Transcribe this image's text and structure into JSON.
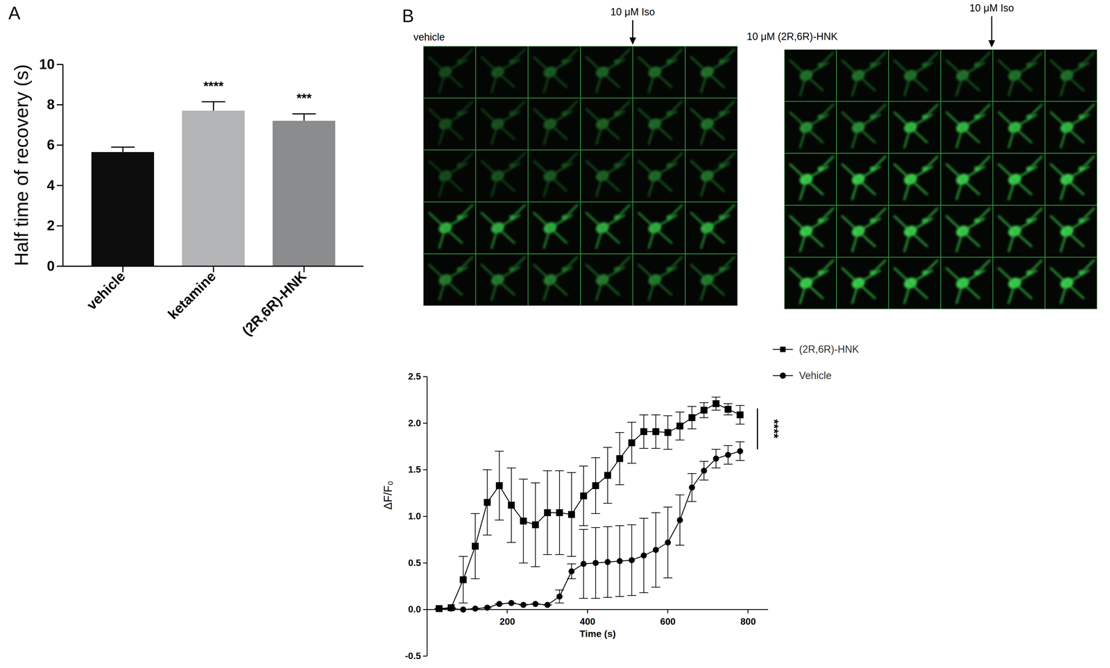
{
  "chart_data": [
    {
      "type": "bar",
      "title": "A",
      "categories": [
        "vehicle",
        "ketamine",
        "(2R,6R)-HNK"
      ],
      "values": [
        5.65,
        7.7,
        7.2
      ],
      "errors": [
        0.25,
        0.45,
        0.35
      ],
      "colors": [
        "#0d0d0d",
        "#b3b4b6",
        "#8b8c8e"
      ],
      "y_label": "Half time of recovery (s)",
      "ylim": [
        0,
        10
      ],
      "yticks": [
        0,
        2,
        4,
        6,
        8,
        10
      ],
      "annotations": [
        {
          "category": "ketamine",
          "text": "****"
        },
        {
          "category": "(2R,6R)-HNK",
          "text": "***"
        }
      ]
    },
    {
      "type": "line",
      "x_label": "Time (s)",
      "y_label": "ΔF/F₀",
      "x": [
        30,
        60,
        90,
        120,
        150,
        180,
        210,
        240,
        270,
        300,
        330,
        360,
        390,
        420,
        450,
        480,
        510,
        540,
        570,
        600,
        630,
        660,
        690,
        720,
        750,
        780
      ],
      "series": [
        {
          "name": "(2R,6R)-HNK",
          "color": "#000000",
          "marker": "square",
          "values": [
            0.01,
            0.02,
            0.32,
            0.68,
            1.15,
            1.33,
            1.12,
            0.95,
            0.91,
            1.04,
            1.04,
            1.02,
            1.22,
            1.33,
            1.44,
            1.62,
            1.79,
            1.91,
            1.91,
            1.9,
            1.97,
            2.06,
            2.14,
            2.21,
            2.15,
            2.09
          ],
          "errors": [
            0,
            0,
            0.25,
            0.35,
            0.35,
            0.37,
            0.4,
            0.45,
            0.45,
            0.45,
            0.45,
            0.45,
            0.32,
            0.3,
            0.3,
            0.28,
            0.22,
            0.18,
            0.18,
            0.18,
            0.15,
            0.12,
            0.08,
            0.07,
            0.06,
            0.1
          ]
        },
        {
          "name": "Vehicle",
          "color": "#000000",
          "marker": "circle",
          "values": [
            0.01,
            0.01,
            0.0,
            0.01,
            0.02,
            0.06,
            0.07,
            0.05,
            0.06,
            0.05,
            0.14,
            0.41,
            0.49,
            0.5,
            0.51,
            0.52,
            0.53,
            0.58,
            0.64,
            0.72,
            0.96,
            1.31,
            1.49,
            1.62,
            1.66,
            1.7
          ],
          "errors": [
            0,
            0,
            0,
            0,
            0,
            0,
            0,
            0,
            0,
            0,
            0.07,
            0.08,
            0.37,
            0.38,
            0.38,
            0.38,
            0.38,
            0.4,
            0.4,
            0.38,
            0.27,
            0.15,
            0.1,
            0.1,
            0.1,
            0.1
          ]
        }
      ],
      "xlim": [
        0,
        850
      ],
      "xticks": [
        200,
        400,
        600,
        800
      ],
      "ylim": [
        -0.5,
        2.5
      ],
      "yticks": [
        -0.5,
        {
          "value": 0,
          "label": "0.0"
        },
        0.5,
        {
          "value": 1,
          "label": "1.0"
        },
        1.5,
        {
          "value": 2,
          "label": "2.0"
        },
        2.5
      ],
      "legend": "right",
      "annotations": [
        {
          "text": "****"
        }
      ]
    }
  ],
  "images": {
    "panel": "B",
    "left": {
      "label": "vehicle",
      "treatment": "10 μM Iso"
    },
    "right": {
      "label": "10 μM (2R,6R)-HNK",
      "treatment": "10 μM Iso"
    }
  }
}
